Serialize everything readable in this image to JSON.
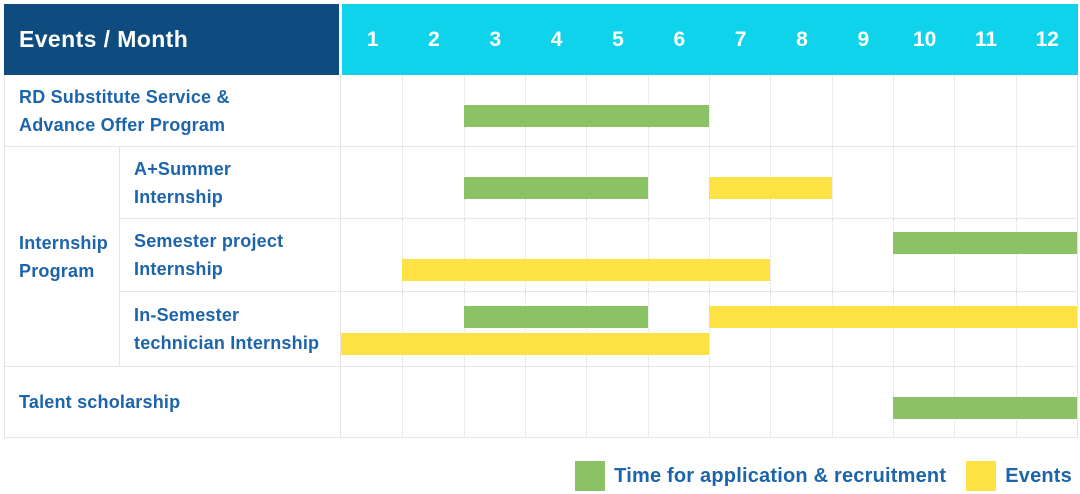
{
  "table": {
    "corner_label": "Events / Month",
    "months": [
      "1",
      "2",
      "3",
      "4",
      "5",
      "6",
      "7",
      "8",
      "9",
      "10",
      "11",
      "12"
    ],
    "row_group": {
      "label": "Internship Program",
      "label_lines": [
        "Internship",
        "Program"
      ]
    }
  },
  "legend": {
    "recruitment_label": "Time for application & recruitment",
    "events_label": "Events"
  },
  "colors": {
    "navy": "#0E4C80",
    "cyan": "#0FD3EA",
    "green": "#8BC265",
    "yellow": "#FFE344",
    "label_blue": "#1C64AB"
  },
  "chart_data": {
    "type": "bar",
    "subtype": "gantt",
    "title": "Events / Month",
    "x_axis": {
      "unit": "month",
      "range": [
        1,
        12
      ],
      "ticks": [
        "1",
        "2",
        "3",
        "4",
        "5",
        "6",
        "7",
        "8",
        "9",
        "10",
        "11",
        "12"
      ]
    },
    "legend": [
      {
        "key": "recruitment",
        "name": "Time for application & recruitment",
        "color": "#8BC265"
      },
      {
        "key": "events",
        "name": "Events",
        "color": "#FFE344"
      }
    ],
    "rows": [
      {
        "group": "",
        "label": "RD Substitute Service & Advance Offer Program",
        "label_lines": [
          "RD Substitute Service &",
          "Advance Offer Program"
        ],
        "lines": [
          [
            {
              "series": "recruitment",
              "start_month": 3,
              "end_month": 6
            }
          ]
        ]
      },
      {
        "group": "Internship Program",
        "label": "A+Summer Internship",
        "label_lines": [
          "A+Summer",
          "Internship"
        ],
        "lines": [
          [
            {
              "series": "recruitment",
              "start_month": 3,
              "end_month": 5
            },
            {
              "series": "events",
              "start_month": 7,
              "end_month": 8
            }
          ]
        ]
      },
      {
        "group": "Internship Program",
        "label": "Semester project Internship",
        "label_lines": [
          "Semester project",
          "Internship"
        ],
        "lines": [
          [
            {
              "series": "recruitment",
              "start_month": 10,
              "end_month": 12
            }
          ],
          [
            {
              "series": "events",
              "start_month": 2,
              "end_month": 7
            }
          ]
        ]
      },
      {
        "group": "Internship Program",
        "label": "In-Semester technician Internship",
        "label_lines": [
          "In-Semester",
          "technician Internship"
        ],
        "lines": [
          [
            {
              "series": "recruitment",
              "start_month": 3,
              "end_month": 5
            },
            {
              "series": "events",
              "start_month": 7,
              "end_month": 12
            }
          ],
          [
            {
              "series": "events",
              "start_month": 1,
              "end_month": 6
            }
          ]
        ]
      },
      {
        "group": "",
        "label": "Talent scholarship",
        "label_lines": [
          "Talent scholarship"
        ],
        "lines": [
          [
            {
              "series": "recruitment",
              "start_month": 10,
              "end_month": 12
            }
          ]
        ]
      }
    ]
  }
}
